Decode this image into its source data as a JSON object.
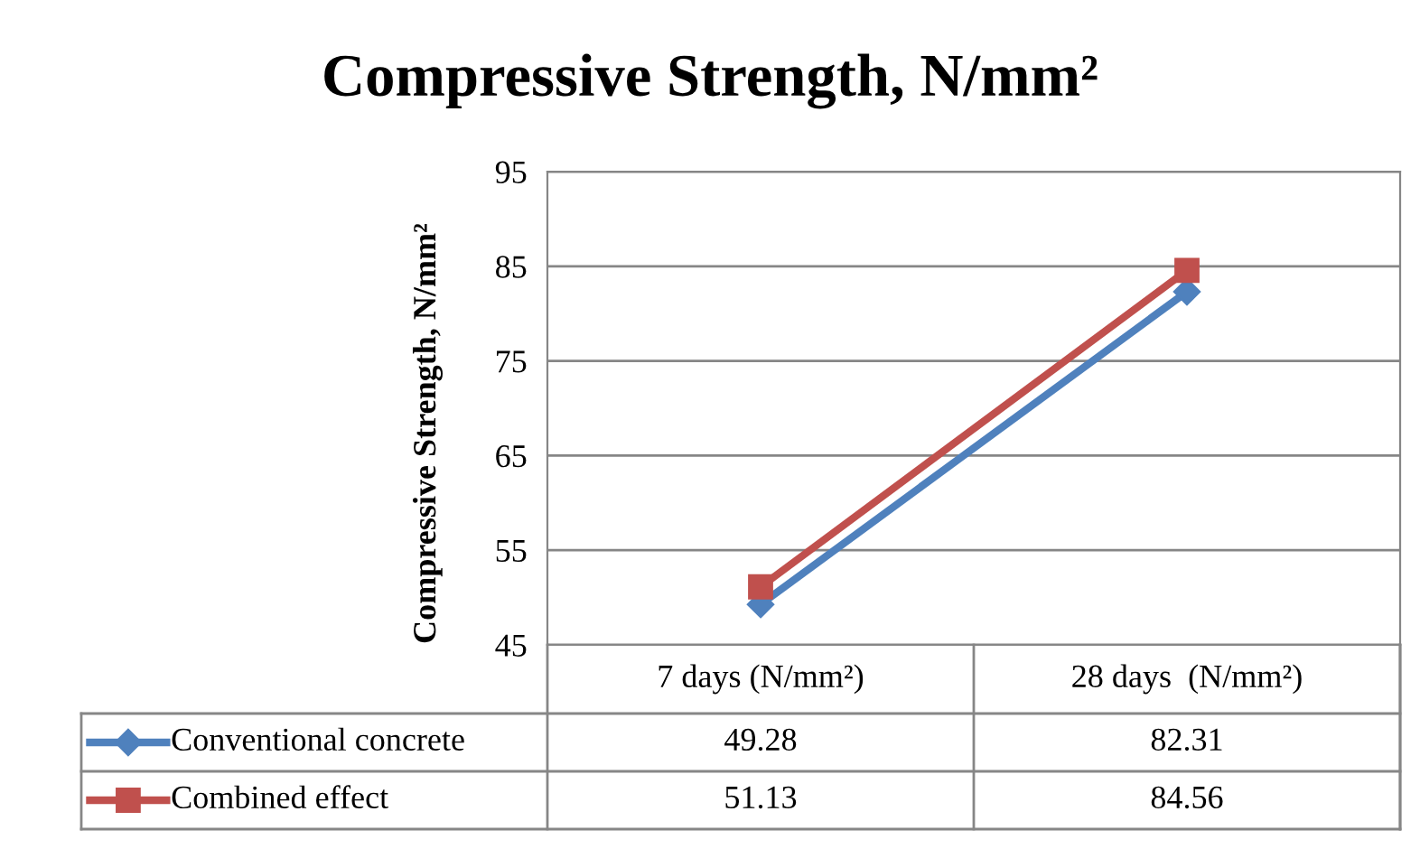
{
  "chart_data": {
    "type": "line",
    "title": "Compressive Strength, N/mm²",
    "ylabel": "Compressive Strength, N/mm²",
    "categories": [
      "7 days (N/mm²)",
      "28 days  (N/mm²)"
    ],
    "series": [
      {
        "name": "Conventional concrete",
        "color": "#4f81bd",
        "marker": "diamond",
        "values": [
          49.28,
          82.31
        ]
      },
      {
        "name": "Combined effect",
        "color": "#c0504d",
        "marker": "square",
        "values": [
          51.13,
          84.56
        ]
      }
    ],
    "ylim": [
      45,
      95
    ],
    "yticks": [
      45,
      55,
      65,
      75,
      85,
      95
    ],
    "grid": "y",
    "legend": "bottom",
    "data_labels": true
  }
}
